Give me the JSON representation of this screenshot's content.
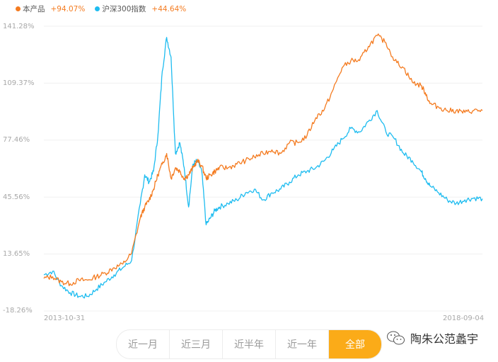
{
  "legend": {
    "series": [
      {
        "name": "本产品",
        "change": "+94.07%",
        "color": "#f47b20"
      },
      {
        "name": "沪深300指数",
        "change": "+44.64%",
        "color": "#1ebcf0"
      }
    ]
  },
  "y_axis": {
    "ticks": [
      "141.28%",
      "109.37%",
      "77.46%",
      "45.56%",
      "13.65%",
      "-18.26%"
    ]
  },
  "x_axis": {
    "start": "2013-10-31",
    "end": "2018-09-04"
  },
  "range_selector": {
    "options": [
      "近一月",
      "近三月",
      "近半年",
      "近一年",
      "全部"
    ],
    "active_index": 4
  },
  "watermark": {
    "text": "陶朱公范蠡宇"
  },
  "chart_data": {
    "type": "line",
    "title": "",
    "xlabel": "",
    "ylabel": "",
    "x_range": [
      "2013-10-31",
      "2018-09-04"
    ],
    "ylim": [
      -18.26,
      141.28
    ],
    "yticks": [
      141.28,
      109.37,
      77.46,
      45.56,
      13.65,
      -18.26
    ],
    "grid": true,
    "legend_position": "top-left",
    "x": [
      0,
      0.02,
      0.04,
      0.06,
      0.08,
      0.1,
      0.12,
      0.14,
      0.16,
      0.18,
      0.2,
      0.22,
      0.23,
      0.24,
      0.25,
      0.26,
      0.27,
      0.28,
      0.29,
      0.3,
      0.31,
      0.32,
      0.33,
      0.34,
      0.35,
      0.36,
      0.37,
      0.38,
      0.39,
      0.4,
      0.42,
      0.44,
      0.46,
      0.48,
      0.5,
      0.52,
      0.54,
      0.56,
      0.58,
      0.6,
      0.62,
      0.64,
      0.66,
      0.68,
      0.7,
      0.72,
      0.74,
      0.76,
      0.78,
      0.8,
      0.82,
      0.84,
      0.86,
      0.87,
      0.88,
      0.9,
      0.92,
      0.94,
      0.96,
      0.98,
      1.0
    ],
    "series": [
      {
        "name": "本产品",
        "final_change": "+94.07%",
        "color": "#f47b20",
        "values": [
          0,
          1,
          -2,
          -3,
          -1,
          -1,
          1,
          3,
          6,
          8,
          14,
          34,
          40,
          44,
          50,
          58,
          64,
          70,
          56,
          62,
          60,
          56,
          58,
          62,
          66,
          63,
          56,
          58,
          60,
          62,
          62,
          64,
          66,
          68,
          70,
          72,
          70,
          76,
          76,
          80,
          90,
          95,
          106,
          118,
          122,
          122,
          130,
          136,
          132,
          122,
          118,
          110,
          108,
          104,
          98,
          96,
          94,
          94,
          93,
          94,
          94.07
        ]
      },
      {
        "name": "沪深300指数",
        "final_change": "+44.64%",
        "color": "#1ebcf0",
        "values": [
          2,
          4,
          -4,
          -8,
          -10,
          -10,
          -6,
          -2,
          2,
          6,
          10,
          42,
          58,
          54,
          60,
          80,
          116,
          135,
          124,
          70,
          76,
          62,
          40,
          64,
          66,
          60,
          30,
          34,
          38,
          40,
          42,
          44,
          48,
          50,
          44,
          48,
          50,
          54,
          58,
          60,
          62,
          66,
          72,
          78,
          84,
          82,
          88,
          94,
          82,
          78,
          70,
          66,
          60,
          56,
          52,
          48,
          44,
          42,
          44,
          45,
          44.64
        ]
      }
    ]
  }
}
